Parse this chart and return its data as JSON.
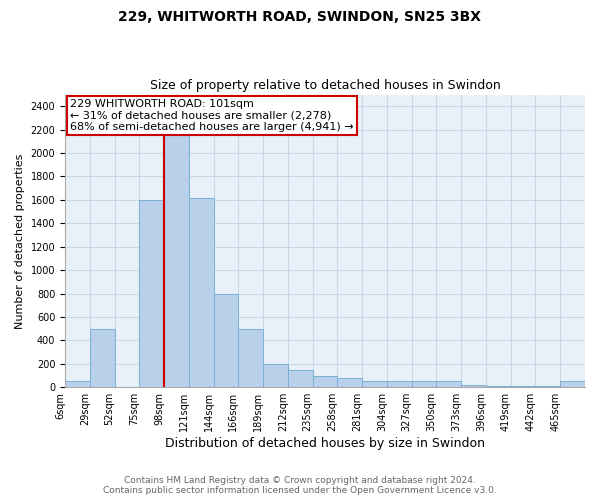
{
  "title": "229, WHITWORTH ROAD, SWINDON, SN25 3BX",
  "subtitle": "Size of property relative to detached houses in Swindon",
  "xlabel": "Distribution of detached houses by size in Swindon",
  "ylabel": "Number of detached properties",
  "bar_color": "#b8d0ea",
  "bar_edge_color": "#7aafd4",
  "grid_color": "#c8d8e8",
  "background_color": "#e8f0f8",
  "annotation_box_color": "#cc0000",
  "annotation_line_color": "#cc0000",
  "property_line_x": 3,
  "annotation_text_line1": "229 WHITWORTH ROAD: 101sqm",
  "annotation_text_line2": "← 31% of detached houses are smaller (2,278)",
  "annotation_text_line3": "68% of semi-detached houses are larger (4,941) →",
  "categories": [
    "6sqm",
    "29sqm",
    "52sqm",
    "75sqm",
    "98sqm",
    "121sqm",
    "144sqm",
    "166sqm",
    "189sqm",
    "212sqm",
    "235sqm",
    "258sqm",
    "281sqm",
    "304sqm",
    "327sqm",
    "350sqm",
    "373sqm",
    "396sqm",
    "419sqm",
    "442sqm",
    "465sqm"
  ],
  "values": [
    50,
    500,
    5,
    1600,
    2220,
    1620,
    800,
    500,
    200,
    150,
    100,
    75,
    50,
    50,
    50,
    50,
    20,
    10,
    10,
    10,
    50
  ],
  "property_bar_index": 4,
  "ylim": [
    0,
    2500
  ],
  "yticks": [
    0,
    200,
    400,
    600,
    800,
    1000,
    1200,
    1400,
    1600,
    1800,
    2000,
    2200,
    2400
  ],
  "footnote_line1": "Contains HM Land Registry data © Crown copyright and database right 2024.",
  "footnote_line2": "Contains public sector information licensed under the Open Government Licence v3.0.",
  "title_fontsize": 10,
  "subtitle_fontsize": 9,
  "xlabel_fontsize": 9,
  "ylabel_fontsize": 8,
  "tick_fontsize": 7,
  "annotation_fontsize": 8,
  "footnote_fontsize": 6.5
}
